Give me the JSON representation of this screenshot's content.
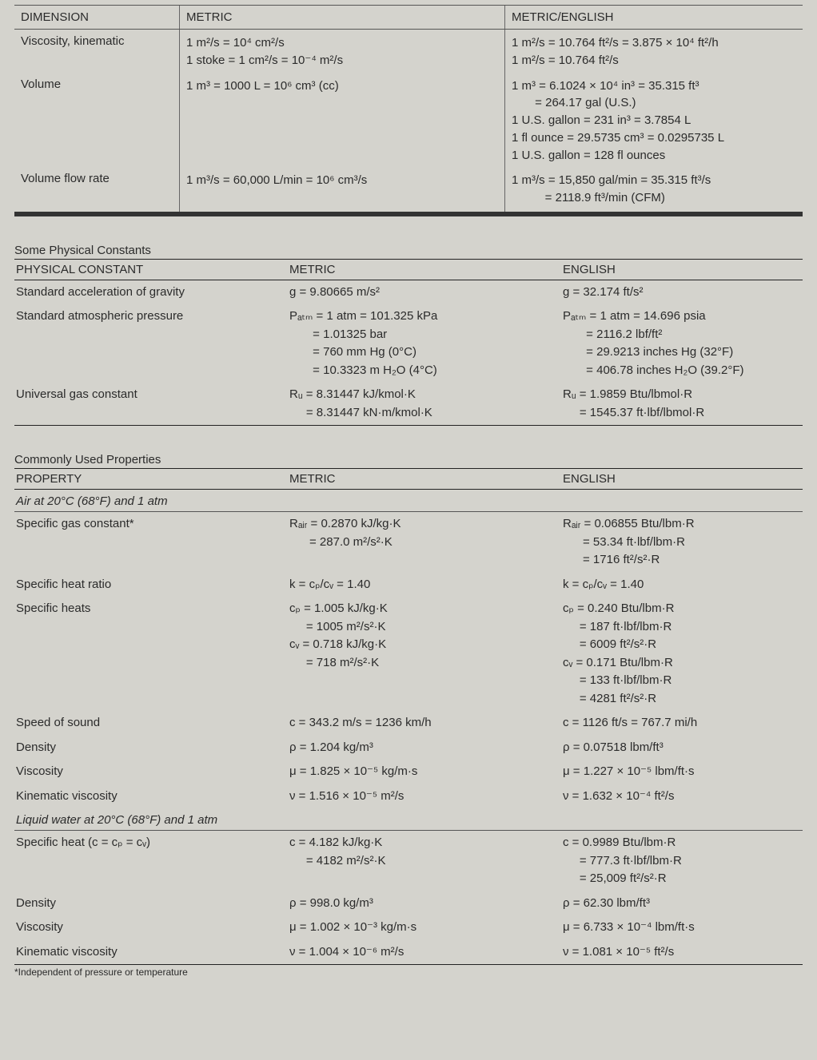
{
  "colors": {
    "bg": "#d4d3cd",
    "text": "#2b2b2b",
    "rule": "#555",
    "thick_rule": "#333"
  },
  "conversion": {
    "head": {
      "c1": "DIMENSION",
      "c2": "METRIC",
      "c3": "METRIC/ENGLISH"
    },
    "rows": [
      {
        "c1": "Viscosity, kinematic",
        "c2": [
          "1 m²/s = 10⁴ cm²/s",
          "1 stoke = 1 cm²/s = 10⁻⁴ m²/s"
        ],
        "c3": [
          "1 m²/s = 10.764 ft²/s = 3.875 × 10⁴ ft²/h",
          "1 m²/s = 10.764 ft²/s"
        ]
      },
      {
        "c1": "Volume",
        "c2": [
          "1 m³ = 1000 L = 10⁶ cm³ (cc)"
        ],
        "c3": [
          "1 m³ = 6.1024 × 10⁴ in³ = 35.315 ft³",
          "       = 264.17 gal (U.S.)",
          "1 U.S. gallon = 231 in³ = 3.7854 L",
          "1 fl ounce = 29.5735 cm³ = 0.0295735 L",
          "1 U.S. gallon = 128 fl ounces"
        ]
      },
      {
        "c1": "Volume flow rate",
        "c2": [
          "1 m³/s = 60,000 L/min = 10⁶ cm³/s"
        ],
        "c3": [
          "1 m³/s = 15,850 gal/min = 35.315 ft³/s",
          "          = 2118.9 ft³/min (CFM)"
        ]
      }
    ]
  },
  "constants": {
    "title": "Some Physical Constants",
    "head": {
      "p1": "PHYSICAL CONSTANT",
      "p2": "METRIC",
      "p3": "ENGLISH"
    },
    "rows": [
      {
        "p1": [
          "Standard acceleration of gravity"
        ],
        "p2": [
          "g = 9.80665 m/s²"
        ],
        "p3": [
          "g = 32.174 ft/s²"
        ]
      },
      {
        "p1": [
          "Standard atmospheric pressure"
        ],
        "p2": [
          "Pₐₜₘ = 1 atm = 101.325 kPa",
          "       = 1.01325 bar",
          "       = 760 mm Hg (0°C)",
          "       = 10.3323 m H₂O (4°C)"
        ],
        "p3": [
          "Pₐₜₘ = 1 atm = 14.696 psia",
          "       = 2116.2 lbf/ft²",
          "       = 29.9213 inches Hg (32°F)",
          "       = 406.78 inches H₂O (39.2°F)"
        ]
      },
      {
        "p1": [
          "Universal gas constant"
        ],
        "p2": [
          "Rᵤ = 8.31447 kJ/kmol·K",
          "     = 8.31447 kN·m/kmol·K"
        ],
        "p3": [
          "Rᵤ = 1.9859 Btu/lbmol·R",
          "     = 1545.37 ft·lbf/lbmol·R"
        ]
      }
    ]
  },
  "properties": {
    "title": "Commonly Used Properties",
    "head": {
      "p1": "PROPERTY",
      "p2": "METRIC",
      "p3": "ENGLISH"
    },
    "groups": [
      {
        "subheading": "Air at 20°C (68°F) and 1 atm",
        "rows": [
          {
            "p1": [
              "Specific gas constant*"
            ],
            "p2": [
              "Rₐᵢᵣ = 0.2870 kJ/kg·K",
              "      = 287.0 m²/s²·K"
            ],
            "p3": [
              "Rₐᵢᵣ = 0.06855 Btu/lbm·R",
              "      = 53.34 ft·lbf/lbm·R",
              "      = 1716 ft²/s²·R"
            ]
          },
          {
            "p1": [
              "Specific heat ratio"
            ],
            "p2": [
              "k  = cₚ/cᵥ = 1.40"
            ],
            "p3": [
              "k  = cₚ/cᵥ = 1.40"
            ]
          },
          {
            "p1": [
              "Specific heats"
            ],
            "p2": [
              "cₚ = 1.005 kJ/kg·K",
              "     = 1005 m²/s²·K",
              "cᵥ = 0.718 kJ/kg·K",
              "     = 718 m²/s²·K"
            ],
            "p3": [
              "cₚ = 0.240 Btu/lbm·R",
              "     = 187 ft·lbf/lbm·R",
              "     = 6009 ft²/s²·R",
              "cᵥ = 0.171 Btu/lbm·R",
              "     = 133 ft·lbf/lbm·R",
              "     = 4281 ft²/s²·R"
            ]
          },
          {
            "p1": [
              "Speed of sound"
            ],
            "p2": [
              "c  = 343.2 m/s = 1236 km/h"
            ],
            "p3": [
              "c  = 1126 ft/s = 767.7 mi/h"
            ]
          },
          {
            "p1": [
              "Density"
            ],
            "p2": [
              "ρ  = 1.204 kg/m³"
            ],
            "p3": [
              "ρ  = 0.07518 lbm/ft³"
            ]
          },
          {
            "p1": [
              "Viscosity"
            ],
            "p2": [
              "μ  = 1.825 × 10⁻⁵ kg/m·s"
            ],
            "p3": [
              "μ  = 1.227 × 10⁻⁵ lbm/ft·s"
            ]
          },
          {
            "p1": [
              "Kinematic viscosity"
            ],
            "p2": [
              "ν  = 1.516 × 10⁻⁵ m²/s"
            ],
            "p3": [
              "ν  = 1.632 × 10⁻⁴ ft²/s"
            ]
          }
        ]
      },
      {
        "subheading": "Liquid water at 20°C (68°F) and 1 atm",
        "rows": [
          {
            "p1": [
              "Specific heat (c = cₚ = cᵥ)"
            ],
            "p2": [
              "c  = 4.182 kJ/kg·K",
              "     = 4182 m²/s²·K"
            ],
            "p3": [
              "c  = 0.9989 Btu/lbm·R",
              "     = 777.3 ft·lbf/lbm·R",
              "     = 25,009 ft²/s²·R"
            ]
          },
          {
            "p1": [
              "Density"
            ],
            "p2": [
              "ρ  = 998.0 kg/m³"
            ],
            "p3": [
              "ρ  = 62.30 lbm/ft³"
            ]
          },
          {
            "p1": [
              "Viscosity"
            ],
            "p2": [
              "μ  = 1.002 × 10⁻³ kg/m·s"
            ],
            "p3": [
              "μ  = 6.733 × 10⁻⁴ lbm/ft·s"
            ]
          },
          {
            "p1": [
              "Kinematic viscosity"
            ],
            "p2": [
              "ν  = 1.004 × 10⁻⁶ m²/s"
            ],
            "p3": [
              "ν  = 1.081 × 10⁻⁵ ft²/s"
            ]
          }
        ]
      }
    ],
    "footnote": "*Independent of pressure or temperature"
  }
}
